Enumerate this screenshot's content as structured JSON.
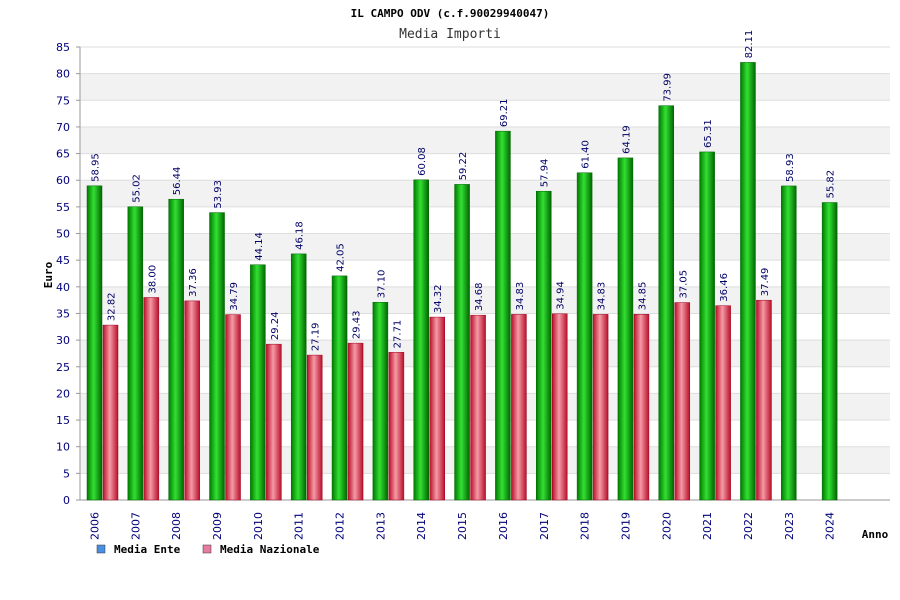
{
  "chart_data": {
    "type": "bar",
    "title": "IL CAMPO ODV (c.f.90029940047)",
    "subtitle": "Media Importi",
    "xlabel": "Anno",
    "ylabel": "Euro",
    "ylim": [
      0,
      85
    ],
    "ytick_step": 5,
    "grid": true,
    "legend_position": "bottom-left",
    "categories": [
      "2006",
      "2007",
      "2008",
      "2009",
      "2010",
      "2011",
      "2012",
      "2013",
      "2014",
      "2015",
      "2016",
      "2017",
      "2018",
      "2019",
      "2020",
      "2021",
      "2022",
      "2023",
      "2024"
    ],
    "series": [
      {
        "name": "Media Ente",
        "color": "#00b000",
        "legend_color": "#4a90e2",
        "values": [
          58.95,
          55.02,
          56.44,
          53.93,
          44.14,
          46.18,
          42.05,
          37.1,
          60.08,
          59.22,
          69.21,
          57.94,
          61.4,
          64.19,
          73.99,
          65.31,
          82.11,
          58.93,
          55.82
        ],
        "labels": [
          "58.95",
          "55.02",
          "56.44",
          "53.93",
          "44.14",
          "46.18",
          "42.05",
          "37.10",
          "60.08",
          "59.22",
          "69.21",
          "57.94",
          "61.40",
          "64.19",
          "73.99",
          "65.31",
          "82.11",
          "58.93",
          "55.82"
        ]
      },
      {
        "name": "Media Nazionale",
        "color": "#e03040",
        "legend_color": "#e87ba0",
        "values": [
          32.82,
          38.0,
          37.36,
          34.79,
          29.24,
          27.19,
          29.43,
          27.71,
          34.32,
          34.68,
          34.83,
          34.94,
          34.83,
          34.85,
          37.05,
          36.46,
          37.49,
          null,
          null
        ],
        "labels": [
          "32.82",
          "38.00",
          "37.36",
          "34.79",
          "29.24",
          "27.19",
          "29.43",
          "27.71",
          "34.32",
          "34.68",
          "34.83",
          "34.94",
          "34.83",
          "34.85",
          "37.05",
          "36.46",
          "37.49",
          null,
          null
        ]
      }
    ]
  }
}
